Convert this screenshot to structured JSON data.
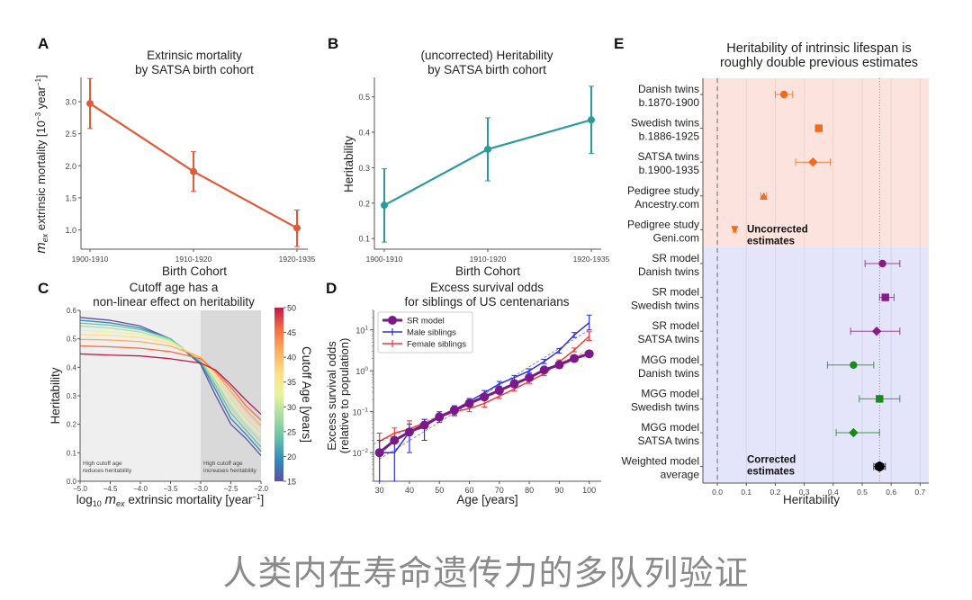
{
  "caption": "人类内在寿命遗传力的多队列验证",
  "chart_data": [
    {
      "panel": "A",
      "type": "line",
      "title": "Extrinsic mortality\nby SATSA birth cohort",
      "title_lines": [
        "Extrinsic mortality",
        "by SATSA birth cohort"
      ],
      "xlabel": "Birth Cohort",
      "ylabel": "m_ex extrinsic mortality [10^-3 year^-1]",
      "categories": [
        "1900-1910",
        "1910-1920",
        "1920-1935"
      ],
      "yticks": [
        1.0,
        1.5,
        2.0,
        2.5,
        3.0
      ],
      "ylim": [
        0.7,
        3.35
      ],
      "color": "#e05a3a",
      "series": [
        {
          "name": "Extrinsic mortality",
          "values": [
            2.97,
            1.91,
            1.03
          ],
          "err_low": [
            2.58,
            1.6,
            0.74
          ],
          "err_high": [
            3.36,
            2.22,
            1.31
          ]
        }
      ]
    },
    {
      "panel": "B",
      "type": "line",
      "title": "(uncorrected) Heritability\nby SATSA birth cohort",
      "title_lines": [
        "(uncorrected) Heritability",
        "by SATSA birth cohort"
      ],
      "xlabel": "Birth Cohort",
      "ylabel": "Heritability",
      "categories": [
        "1900-1910",
        "1910-1920",
        "1920-1935"
      ],
      "yticks": [
        0.1,
        0.2,
        0.3,
        0.4,
        0.5
      ],
      "ylim": [
        0.07,
        0.55
      ],
      "color": "#2a9a9a",
      "series": [
        {
          "name": "Heritability",
          "values": [
            0.194,
            0.352,
            0.435
          ],
          "err_low": [
            0.09,
            0.263,
            0.34
          ],
          "err_high": [
            0.297,
            0.441,
            0.53
          ]
        }
      ]
    },
    {
      "panel": "C",
      "type": "line",
      "title": "Cutoff age has a\nnon-linear effect on heritability",
      "title_lines": [
        "Cutoff age has a",
        "non-linear effect on heritability"
      ],
      "xlabel": "log10 m_ex extrinsic mortality [year^-1]",
      "ylabel": "Heritability",
      "xlim": [
        -5.0,
        -2.0
      ],
      "ylim": [
        0.0,
        0.6
      ],
      "xticks": [
        -5.0,
        -4.5,
        -4.0,
        -3.5,
        -3.0,
        -2.5,
        -2.0
      ],
      "yticks": [
        0.0,
        0.1,
        0.2,
        0.3,
        0.4,
        0.5,
        0.6
      ],
      "regions": [
        {
          "x": [
            -5.0,
            -3.0
          ],
          "label_lines": [
            "High cutoff age",
            "reduces heritability"
          ],
          "fill": "#efefef"
        },
        {
          "x": [
            -3.0,
            -2.0
          ],
          "label_lines": [
            "High cutoff age",
            "increases heritability"
          ],
          "fill": "#d9d9d9"
        }
      ],
      "colorbar": {
        "label": "Cutoff Age [years]",
        "range": [
          15,
          50
        ],
        "ticks": [
          15,
          20,
          25,
          30,
          35,
          40,
          45,
          50
        ]
      },
      "x": [
        -5.0,
        -4.5,
        -4.0,
        -3.5,
        -3.0,
        -2.75,
        -2.5,
        -2.25,
        -2.0
      ],
      "series": [
        {
          "name": "15",
          "cutoff": 15,
          "values": [
            0.575,
            0.565,
            0.545,
            0.5,
            0.41,
            0.3,
            0.2,
            0.15,
            0.09
          ]
        },
        {
          "name": "19",
          "cutoff": 19,
          "values": [
            0.565,
            0.556,
            0.538,
            0.5,
            0.415,
            0.32,
            0.22,
            0.165,
            0.105
          ]
        },
        {
          "name": "23",
          "cutoff": 23,
          "values": [
            0.555,
            0.548,
            0.532,
            0.5,
            0.42,
            0.335,
            0.24,
            0.18,
            0.12
          ]
        },
        {
          "name": "27",
          "cutoff": 27,
          "values": [
            0.545,
            0.538,
            0.524,
            0.495,
            0.425,
            0.35,
            0.26,
            0.195,
            0.14
          ]
        },
        {
          "name": "31",
          "cutoff": 31,
          "values": [
            0.53,
            0.525,
            0.515,
            0.49,
            0.43,
            0.36,
            0.28,
            0.21,
            0.16
          ]
        },
        {
          "name": "35",
          "cutoff": 35,
          "values": [
            0.515,
            0.512,
            0.505,
            0.485,
            0.435,
            0.37,
            0.3,
            0.23,
            0.18
          ]
        },
        {
          "name": "40",
          "cutoff": 40,
          "values": [
            0.498,
            0.496,
            0.49,
            0.475,
            0.435,
            0.38,
            0.315,
            0.25,
            0.195
          ]
        },
        {
          "name": "45",
          "cutoff": 45,
          "values": [
            0.475,
            0.472,
            0.467,
            0.455,
            0.43,
            0.385,
            0.33,
            0.265,
            0.215
          ]
        },
        {
          "name": "50",
          "cutoff": 50,
          "values": [
            0.447,
            0.443,
            0.44,
            0.43,
            0.415,
            0.39,
            0.34,
            0.285,
            0.235
          ]
        }
      ]
    },
    {
      "panel": "D",
      "type": "line",
      "title": "Excess survival odds\nfor siblings of US centenarians",
      "title_lines": [
        "Excess survival odds",
        "for siblings of US centenarians"
      ],
      "xlabel": "Age [years]",
      "ylabel": "Excess survival odds (relative to population)",
      "ylabel_lines": [
        "Excess survival odds",
        "(relative to population)"
      ],
      "yscale": "log",
      "xlim": [
        28,
        104
      ],
      "ylim": [
        0.002,
        30
      ],
      "xticks": [
        30,
        40,
        50,
        60,
        70,
        80,
        90,
        100
      ],
      "yticks": [
        {
          "value": 0.01,
          "label": "10",
          "exp": "-2"
        },
        {
          "value": 0.1,
          "label": "10",
          "exp": "-1"
        },
        {
          "value": 1,
          "label": "10",
          "exp": "0"
        },
        {
          "value": 10,
          "label": "10",
          "exp": "1"
        }
      ],
      "legend": {
        "position": "top-left",
        "entries": [
          "SR model",
          "Male siblings",
          "Female siblings"
        ]
      },
      "x": [
        30,
        35,
        40,
        45,
        50,
        55,
        60,
        65,
        70,
        75,
        80,
        85,
        90,
        95,
        100
      ],
      "series": [
        {
          "name": "SR model",
          "color": "#7a1a8a",
          "values": [
            0.01,
            0.02,
            0.032,
            0.047,
            0.075,
            0.11,
            0.16,
            0.23,
            0.33,
            0.48,
            0.68,
            1.05,
            1.4,
            2.0,
            2.6
          ]
        },
        {
          "name": "Male siblings",
          "color": "#3030e0",
          "values": [
            0.01,
            0.01,
            0.032,
            0.042,
            0.078,
            0.11,
            0.18,
            0.29,
            0.48,
            0.68,
            1.0,
            1.7,
            3.1,
            7.5,
            15
          ],
          "err_low": [
            0.0005,
            0.0005,
            0.01,
            0.02,
            0.055,
            0.08,
            0.15,
            0.25,
            0.42,
            0.6,
            0.9,
            1.5,
            2.7,
            6.5,
            10
          ],
          "err_high": [
            0.02,
            0.02,
            0.05,
            0.065,
            0.1,
            0.14,
            0.21,
            0.33,
            0.55,
            0.77,
            1.12,
            1.9,
            3.5,
            8.6,
            23
          ]
        },
        {
          "name": "Female siblings",
          "color": "#ee3a3a",
          "values": [
            0.019,
            0.03,
            0.038,
            0.052,
            0.072,
            0.1,
            0.12,
            0.16,
            0.24,
            0.36,
            0.55,
            0.85,
            1.65,
            3.2,
            7.0
          ],
          "err_low": [
            0.012,
            0.022,
            0.028,
            0.042,
            0.06,
            0.085,
            0.1,
            0.13,
            0.21,
            0.32,
            0.49,
            0.76,
            1.5,
            2.9,
            5.5
          ],
          "err_high": [
            0.03,
            0.04,
            0.06,
            0.065,
            0.085,
            0.12,
            0.14,
            0.19,
            0.27,
            0.4,
            0.62,
            0.95,
            1.85,
            3.6,
            9.0
          ]
        }
      ]
    },
    {
      "panel": "E",
      "type": "scatter",
      "title": "Heritability of intrinsic lifespan is\nroughly double previous estimates",
      "title_lines": [
        "Heritability of intrinsic lifespan is",
        "roughly double previous estimates"
      ],
      "xlabel": "Heritability",
      "xlim": [
        -0.05,
        0.73
      ],
      "xticks": [
        0.0,
        0.1,
        0.2,
        0.3,
        0.4,
        0.5,
        0.6,
        0.7
      ],
      "reference_lines": [
        0.0,
        0.56
      ],
      "groups": [
        {
          "label_lines": [
            "Uncorrected",
            "estimates"
          ],
          "fill": "#fde3de"
        },
        {
          "label_lines": [
            "Corrected",
            "estimates"
          ],
          "fill": "#e4e4fb"
        }
      ],
      "rows": [
        {
          "label_lines": [
            "Danish twins",
            "b.1870-1900"
          ],
          "group": 0,
          "value": 0.23,
          "err": [
            0.2,
            0.26
          ],
          "marker": "circle",
          "color": "#f06a20"
        },
        {
          "label_lines": [
            "Swedish twins",
            "b.1886-1925"
          ],
          "group": 0,
          "value": 0.35,
          "err": [
            0.35,
            0.35
          ],
          "marker": "square",
          "color": "#f06a20"
        },
        {
          "label_lines": [
            "SATSA twins",
            "b.1900-1935"
          ],
          "group": 0,
          "value": 0.33,
          "err": [
            0.27,
            0.39
          ],
          "marker": "diamond",
          "color": "#f06a20"
        },
        {
          "label_lines": [
            "Pedigree study",
            "Ancestry.com"
          ],
          "group": 0,
          "value": 0.16,
          "err": [
            0.15,
            0.17
          ],
          "marker": "triangle-up",
          "color": "#f06a20"
        },
        {
          "label_lines": [
            "Pedigree study",
            "Geni.com"
          ],
          "group": 0,
          "value": 0.06,
          "err": [
            0.055,
            0.065
          ],
          "marker": "triangle-down",
          "color": "#f06a20"
        },
        {
          "label_lines": [
            "SR model",
            "Danish twins"
          ],
          "group": 1,
          "value": 0.57,
          "err": [
            0.51,
            0.63
          ],
          "marker": "circle",
          "color": "#8a1a8a"
        },
        {
          "label_lines": [
            "SR model",
            "Swedish twins"
          ],
          "group": 1,
          "value": 0.58,
          "err": [
            0.56,
            0.61
          ],
          "marker": "square",
          "color": "#8a1a8a"
        },
        {
          "label_lines": [
            "SR model",
            "SATSA twins"
          ],
          "group": 1,
          "value": 0.55,
          "err": [
            0.46,
            0.63
          ],
          "marker": "diamond",
          "color": "#8a1a8a"
        },
        {
          "label_lines": [
            "MGG model",
            "Danish twins"
          ],
          "group": 1,
          "value": 0.47,
          "err": [
            0.38,
            0.54
          ],
          "marker": "circle",
          "color": "#1a8a1a"
        },
        {
          "label_lines": [
            "MGG model",
            "Swedish twins"
          ],
          "group": 1,
          "value": 0.56,
          "err": [
            0.49,
            0.63
          ],
          "marker": "square",
          "color": "#1a8a1a"
        },
        {
          "label_lines": [
            "MGG model",
            "SATSA twins"
          ],
          "group": 1,
          "value": 0.47,
          "err": [
            0.41,
            0.56
          ],
          "marker": "diamond",
          "color": "#1a8a1a"
        },
        {
          "label_lines": [
            "Weighted model",
            "average"
          ],
          "group": 1,
          "value": 0.56,
          "err": [
            0.54,
            0.58
          ],
          "marker": "hexagon",
          "color": "#000000"
        }
      ]
    }
  ]
}
